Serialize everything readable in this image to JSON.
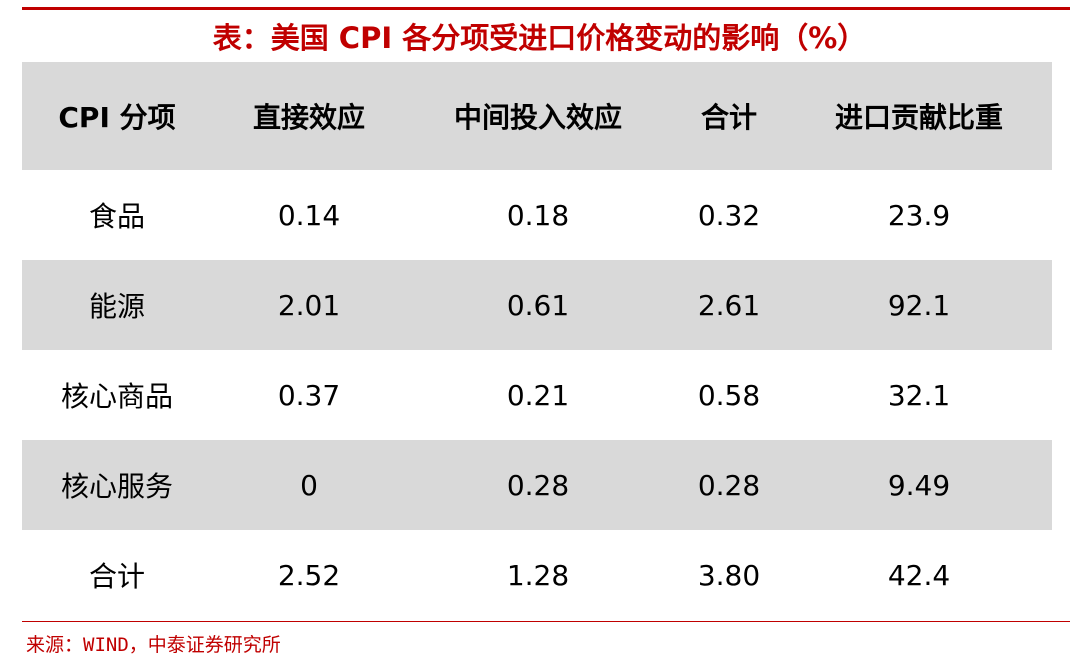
{
  "header": {
    "title": "表：美国 CPI 各分项受进口价格变动的影响（%）"
  },
  "table": {
    "columns": [
      "CPI 分项",
      "直接效应",
      "中间投入效应",
      "合计",
      "进口贡献比重"
    ],
    "rows": [
      [
        "食品",
        "0.14",
        "0.18",
        "0.32",
        "23.9"
      ],
      [
        "能源",
        "2.01",
        "0.61",
        "2.61",
        "92.1"
      ],
      [
        "核心商品",
        "0.37",
        "0.21",
        "0.58",
        "32.1"
      ],
      [
        "核心服务",
        "0",
        "0.28",
        "0.28",
        "9.49"
      ],
      [
        "合计",
        "2.52",
        "1.28",
        "3.80",
        "42.4"
      ]
    ]
  },
  "footer": {
    "source": "来源：WIND，中泰证券研究所"
  }
}
